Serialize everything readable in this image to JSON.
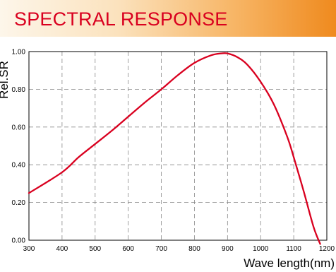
{
  "banner": {
    "title": "SPECTRAL RESPONSE"
  },
  "colors": {
    "curve": "#d9001f",
    "title_text": "#d9001f",
    "banner_end": "#ef8a1e",
    "grid": "#888888"
  },
  "chart_data": {
    "type": "line",
    "title": "SPECTRAL RESPONSE",
    "xlabel": "Wave length(nm)",
    "ylabel": "Rel.SR",
    "xlim": [
      300,
      1200
    ],
    "ylim": [
      0,
      1.0
    ],
    "x_ticks": [
      "300",
      "400",
      "500",
      "600",
      "700",
      "800",
      "900",
      "1000",
      "1100",
      "1200"
    ],
    "y_ticks": [
      "0.00",
      "0.20",
      "0.40",
      "0.60",
      "0.80",
      "1.00"
    ],
    "grid": true,
    "series": [
      {
        "x": [
          300,
          400,
          450,
          500,
          550,
          600,
          650,
          700,
          750,
          800,
          850,
          880,
          900,
          930,
          960,
          1000,
          1040,
          1080,
          1100,
          1130,
          1160,
          1180
        ],
        "y": [
          0.25,
          0.36,
          0.44,
          0.51,
          0.58,
          0.655,
          0.73,
          0.8,
          0.875,
          0.94,
          0.98,
          0.99,
          0.99,
          0.97,
          0.93,
          0.84,
          0.72,
          0.55,
          0.44,
          0.26,
          0.07,
          -0.02
        ]
      }
    ]
  }
}
